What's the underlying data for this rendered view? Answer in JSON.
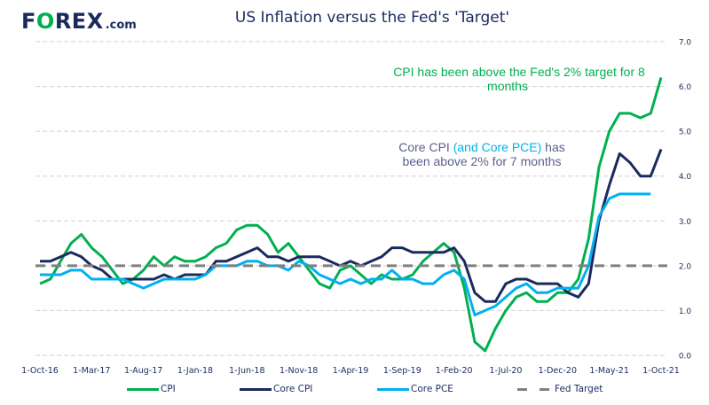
{
  "header": {
    "logo_main_pre": "F",
    "logo_main_o": "O",
    "logo_main_post": "REX",
    "logo_suffix": ".com",
    "title": "US Inflation versus the Fed's 'Target'"
  },
  "colors": {
    "cpi": "#00b050",
    "core_cpi": "#1b2a5e",
    "core_pce": "#00b0f0",
    "fed_target": "#808080",
    "grid": "#d0d0d0"
  },
  "annotations": {
    "cpi_line1": "CPI has been above the Fed's 2% target for 8",
    "cpi_line2": "months",
    "core_line1_a": "Core CPI ",
    "core_line1_b": "(and Core PCE)",
    "core_line1_c": " has",
    "core_line2": "been above 2% for 7 months"
  },
  "legend": {
    "cpi": "CPI",
    "core_cpi": "Core CPI",
    "core_pce": "Core PCE",
    "fed_target": "Fed Target"
  },
  "chart_data": {
    "type": "line",
    "title": "US Inflation versus the Fed's 'Target'",
    "xlabel": "",
    "ylabel": "",
    "ylim": [
      0,
      7
    ],
    "yticks": [
      "0.0",
      "1.0",
      "2.0",
      "3.0",
      "4.0",
      "5.0",
      "6.0",
      "7.0"
    ],
    "y_axis_side": "right",
    "grid": true,
    "legend_position": "bottom",
    "x_start": "1-Oct-16",
    "x_frequency": "monthly",
    "n_points": 61,
    "xtick_labels": [
      "1-Oct-16",
      "1-Mar-17",
      "1-Aug-17",
      "1-Jan-18",
      "1-Jun-18",
      "1-Nov-18",
      "1-Apr-19",
      "1-Sep-19",
      "1-Feb-20",
      "1-Jul-20",
      "1-Dec-20",
      "1-May-21",
      "1-Oct-21"
    ],
    "xtick_every": 5,
    "series": [
      {
        "name": "CPI",
        "color": "#00b050",
        "style": "solid",
        "values": [
          1.6,
          1.7,
          2.1,
          2.5,
          2.7,
          2.4,
          2.2,
          1.9,
          1.6,
          1.7,
          1.9,
          2.2,
          2.0,
          2.2,
          2.1,
          2.1,
          2.2,
          2.4,
          2.5,
          2.8,
          2.9,
          2.9,
          2.7,
          2.3,
          2.5,
          2.2,
          1.9,
          1.6,
          1.5,
          1.9,
          2.0,
          1.8,
          1.6,
          1.8,
          1.7,
          1.7,
          1.8,
          2.1,
          2.3,
          2.5,
          2.3,
          1.5,
          0.3,
          0.1,
          0.6,
          1.0,
          1.3,
          1.4,
          1.2,
          1.2,
          1.4,
          1.4,
          1.7,
          2.6,
          4.2,
          5.0,
          5.4,
          5.4,
          5.3,
          5.4,
          6.2
        ]
      },
      {
        "name": "Core CPI",
        "color": "#1b2a5e",
        "style": "solid",
        "values": [
          2.1,
          2.1,
          2.2,
          2.3,
          2.2,
          2.0,
          1.9,
          1.7,
          1.7,
          1.7,
          1.7,
          1.7,
          1.8,
          1.7,
          1.8,
          1.8,
          1.8,
          2.1,
          2.1,
          2.2,
          2.3,
          2.4,
          2.2,
          2.2,
          2.1,
          2.2,
          2.2,
          2.2,
          2.1,
          2.0,
          2.1,
          2.0,
          2.1,
          2.2,
          2.4,
          2.4,
          2.3,
          2.3,
          2.3,
          2.3,
          2.4,
          2.1,
          1.4,
          1.2,
          1.2,
          1.6,
          1.7,
          1.7,
          1.6,
          1.6,
          1.6,
          1.4,
          1.3,
          1.6,
          3.0,
          3.8,
          4.5,
          4.3,
          4.0,
          4.0,
          4.6
        ]
      },
      {
        "name": "Core PCE",
        "color": "#00b0f0",
        "style": "solid",
        "values": [
          1.8,
          1.8,
          1.8,
          1.9,
          1.9,
          1.7,
          1.7,
          1.7,
          1.7,
          1.6,
          1.5,
          1.6,
          1.7,
          1.7,
          1.7,
          1.7,
          1.8,
          2.0,
          2.0,
          2.0,
          2.1,
          2.1,
          2.0,
          2.0,
          1.9,
          2.1,
          2.0,
          1.8,
          1.7,
          1.6,
          1.7,
          1.6,
          1.7,
          1.7,
          1.9,
          1.7,
          1.7,
          1.6,
          1.6,
          1.8,
          1.9,
          1.7,
          0.9,
          1.0,
          1.1,
          1.3,
          1.5,
          1.6,
          1.4,
          1.4,
          1.5,
          1.5,
          1.5,
          2.0,
          3.1,
          3.5,
          3.6,
          3.6,
          3.6,
          3.6
        ]
      },
      {
        "name": "Fed Target",
        "color": "#808080",
        "style": "dashed",
        "constant": 2.0
      }
    ]
  }
}
